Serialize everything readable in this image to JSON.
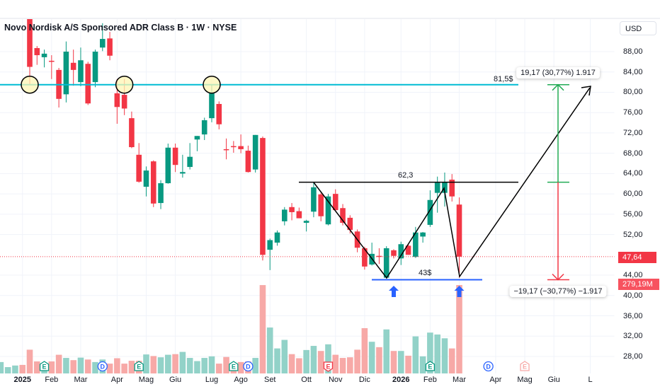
{
  "header": {
    "title": "Novo Nordisk A/S Sponsored ADR Class B · 1W · NYSE",
    "currency": "USD"
  },
  "colors": {
    "up": "#089981",
    "down": "#f23645",
    "up_vol": "#92d2c8",
    "down_vol": "#f7a9a7",
    "support": "#2962ff",
    "resistance_cyan": "#00bcd4",
    "measure_up": "#22ab55",
    "measure_down": "#f23645"
  },
  "chart_data": {
    "type": "candlestick",
    "title": "Novo Nordisk A/S Sponsored ADR Class B · 1W · NYSE",
    "ylim": [
      26,
      95
    ],
    "y_ticks": [
      "88,00",
      "84,00",
      "80,00",
      "76,00",
      "72,00",
      "68,00",
      "64,00",
      "60,00",
      "56,00",
      "52,00",
      "44,00",
      "40,00",
      "36,00",
      "32,00",
      "28,00"
    ],
    "y_tick_values": [
      88,
      84,
      80,
      76,
      72,
      68,
      64,
      60,
      56,
      52,
      44,
      40,
      36,
      32,
      28
    ],
    "x_ticks": [
      {
        "label": "Dic",
        "week": -2
      },
      {
        "label": "2025",
        "week": 3,
        "bold": true
      },
      {
        "label": "Feb",
        "week": 7
      },
      {
        "label": "Mar",
        "week": 11
      },
      {
        "label": "Apr",
        "week": 16
      },
      {
        "label": "Mag",
        "week": 20
      },
      {
        "label": "Giu",
        "week": 24
      },
      {
        "label": "Lug",
        "week": 29
      },
      {
        "label": "Ago",
        "week": 33
      },
      {
        "label": "Set",
        "week": 37
      },
      {
        "label": "Ott",
        "week": 42
      },
      {
        "label": "Nov",
        "week": 46
      },
      {
        "label": "Dic",
        "week": 50
      },
      {
        "label": "2026",
        "week": 55,
        "bold": true
      },
      {
        "label": "Feb",
        "week": 59
      },
      {
        "label": "Mar",
        "week": 63
      },
      {
        "label": "Apr",
        "week": 68
      },
      {
        "label": "Mag",
        "week": 72
      },
      {
        "label": "Giu",
        "week": 76
      },
      {
        "label": "L",
        "week": 81
      }
    ],
    "pre_volumes": [
      36,
      20,
      25,
      27
    ],
    "candles": [
      [
        96,
        97,
        81.5,
        85,
        75
      ],
      [
        88.7,
        89.1,
        85.4,
        87.3,
        38
      ],
      [
        86.9,
        88.4,
        84.9,
        87.6,
        20
      ],
      [
        86.2,
        87.3,
        82.6,
        86.0,
        38
      ],
      [
        84.4,
        84.8,
        77,
        78.7,
        59
      ],
      [
        79.6,
        90,
        78,
        88,
        49
      ],
      [
        85.8,
        88.4,
        81.3,
        84.4,
        42
      ],
      [
        82,
        88.8,
        81.2,
        86.3,
        50
      ],
      [
        85.6,
        86,
        77.5,
        77.8,
        44
      ],
      [
        82,
        88.4,
        81,
        88,
        36
      ],
      [
        88.8,
        93.6,
        88.1,
        90.5,
        44
      ],
      [
        90.6,
        91.9,
        86.3,
        87.2,
        31
      ],
      [
        79.8,
        82.6,
        73.8,
        77.1,
        48
      ],
      [
        79.5,
        82.6,
        75.5,
        76.8,
        31
      ],
      [
        74.9,
        76.2,
        69,
        69.2,
        40
      ],
      [
        67.7,
        70,
        62.2,
        62.4,
        40
      ],
      [
        61.4,
        65.4,
        59.5,
        64.6,
        60
      ],
      [
        66.4,
        66.6,
        57.4,
        58.1,
        55
      ],
      [
        58.2,
        62.7,
        57,
        62.1,
        51
      ],
      [
        62.1,
        69.9,
        62,
        69.1,
        59
      ],
      [
        69.1,
        69.9,
        64.3,
        65.7,
        61
      ],
      [
        64.0,
        67.7,
        63.2,
        64.3,
        68
      ],
      [
        65.3,
        70,
        64.8,
        67.3,
        49
      ],
      [
        70.7,
        71.4,
        68.4,
        71.4,
        39
      ],
      [
        71.7,
        75,
        70.6,
        74.5,
        49
      ],
      [
        74.9,
        81.5,
        74.1,
        79.8,
        54
      ],
      [
        77.7,
        78.2,
        72.7,
        73.7,
        31
      ],
      [
        68.8,
        70.9,
        66.8,
        68.6,
        52
      ],
      [
        69.4,
        70.4,
        68.1,
        69.2,
        28
      ],
      [
        69.4,
        71.7,
        68.0,
        68.8,
        36
      ],
      [
        68.5,
        69.5,
        64.2,
        64.3,
        38
      ],
      [
        64.8,
        71.6,
        64.2,
        71.6,
        49
      ],
      [
        71,
        71.3,
        46.9,
        48,
        279
      ],
      [
        49,
        51.2,
        45,
        50.9,
        145
      ],
      [
        50.4,
        52.8,
        49.8,
        52.4,
        79
      ],
      [
        54.6,
        57.4,
        53.8,
        56.9,
        106
      ],
      [
        57.4,
        58.2,
        54.8,
        56.4,
        61
      ],
      [
        56.6,
        57.3,
        55.2,
        55.2,
        48
      ],
      [
        54.3,
        54.9,
        52.6,
        54.7,
        74
      ],
      [
        56.5,
        62.2,
        55.4,
        61.3,
        87
      ],
      [
        59.9,
        60.2,
        54.6,
        55.6,
        71
      ],
      [
        54,
        60,
        53.8,
        59.5,
        92
      ],
      [
        60,
        60.9,
        56.6,
        56.8,
        59
      ],
      [
        57.2,
        58,
        53.8,
        54.3,
        49
      ],
      [
        55.3,
        55.8,
        52.2,
        52.9,
        51
      ],
      [
        52.6,
        53,
        48.5,
        49.4,
        75
      ],
      [
        49.3,
        49.6,
        45.1,
        45.7,
        143
      ],
      [
        46.1,
        50.4,
        45.9,
        48.2,
        100
      ],
      [
        47.8,
        49.3,
        46.2,
        47.6,
        83
      ],
      [
        43.5,
        49.7,
        43.3,
        49.3,
        139
      ],
      [
        48.9,
        49.1,
        47.3,
        47.8,
        71
      ],
      [
        47.3,
        50.6,
        46,
        50.1,
        71
      ],
      [
        49.8,
        50.2,
        48,
        48,
        56
      ],
      [
        47.6,
        53.5,
        47.4,
        52.4,
        117
      ],
      [
        51.6,
        52.5,
        50.4,
        52.4,
        54
      ],
      [
        53.9,
        60.7,
        53.5,
        58.8,
        129
      ],
      [
        60.2,
        63.4,
        56.3,
        62.2,
        123
      ],
      [
        60.2,
        64.2,
        57.5,
        62.3,
        111
      ],
      [
        62.8,
        63.9,
        58.5,
        59.5,
        79
      ],
      [
        57.9,
        59.3,
        43.5,
        47.64,
        279.19
      ]
    ],
    "candle_fields": [
      "open",
      "high",
      "low",
      "close",
      "volume_M"
    ],
    "last_price": "47,64",
    "last_volume": "279,19M",
    "last_price_value": 47.64
  },
  "drawings": {
    "resistance_label": "81,5$",
    "resistance_value": 81.5,
    "neckline_label": "62,3",
    "neckline_value": 62.3,
    "support_label": "43$",
    "support_value": 43.1,
    "measure_up_label": "19,17 (30,77%) 1.917",
    "measure_down_label": "−19,17 (−30,77%) −1.917"
  },
  "events": [
    {
      "type": "E",
      "week": 6,
      "kind": "earnings-up"
    },
    {
      "type": "D",
      "week": 14,
      "kind": "dividend"
    },
    {
      "type": "E",
      "week": 19,
      "kind": "earnings-up"
    },
    {
      "type": "E",
      "week": 32,
      "kind": "earnings-up"
    },
    {
      "type": "D",
      "week": 34,
      "kind": "dividend"
    },
    {
      "type": "E",
      "week": 45,
      "kind": "earnings-down"
    },
    {
      "type": "E",
      "week": 59,
      "kind": "earnings-up"
    },
    {
      "type": "D",
      "week": 67,
      "kind": "dividend-future"
    },
    {
      "type": "E",
      "week": 72,
      "kind": "earnings-future"
    }
  ]
}
